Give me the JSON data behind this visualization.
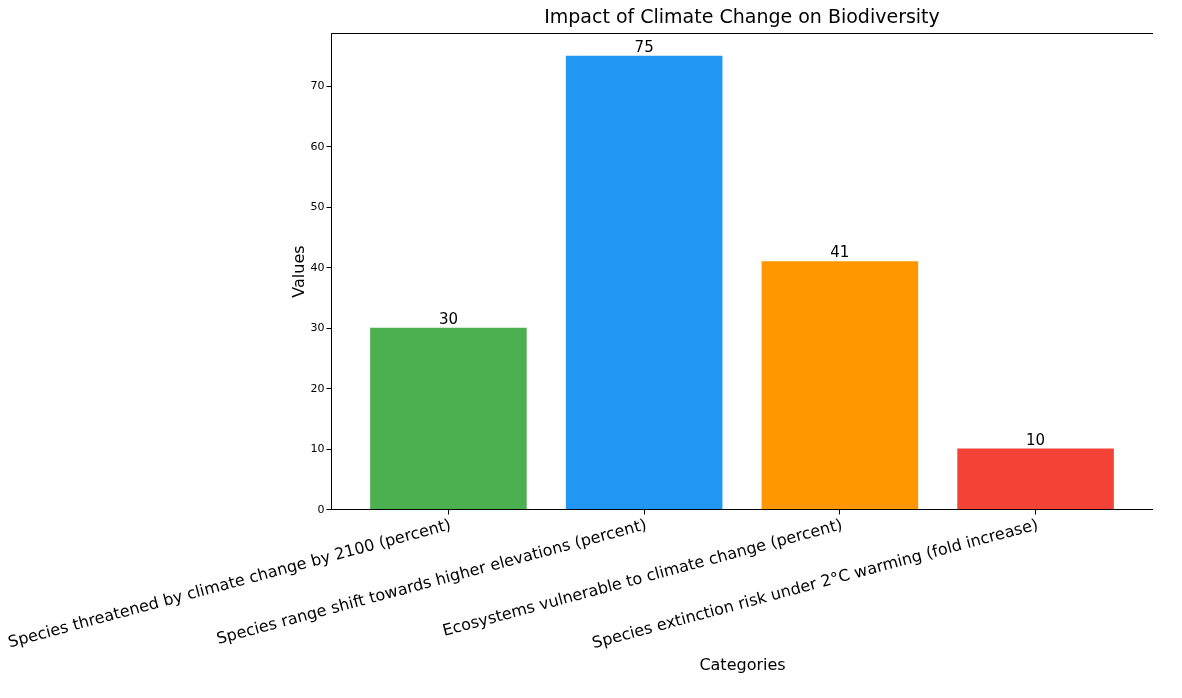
{
  "chart_data": {
    "type": "bar",
    "title": "Impact of Climate Change on Biodiversity",
    "xlabel": "Categories",
    "ylabel": "Values",
    "categories": [
      "Species threatened by climate change by 2100 (percent)",
      "Species range shift towards higher elevations (percent)",
      "Ecosystems vulnerable to climate change (percent)",
      "Species extinction risk under 2°C warming (fold increase)"
    ],
    "values": [
      30,
      75,
      41,
      10
    ],
    "colors": [
      "#4caf50",
      "#2196f3",
      "#ff9800",
      "#f44336"
    ],
    "ylim": [
      0,
      78.75
    ],
    "yticks": [
      0,
      10,
      20,
      30,
      40,
      50,
      60,
      70
    ],
    "data_labels": true
  }
}
